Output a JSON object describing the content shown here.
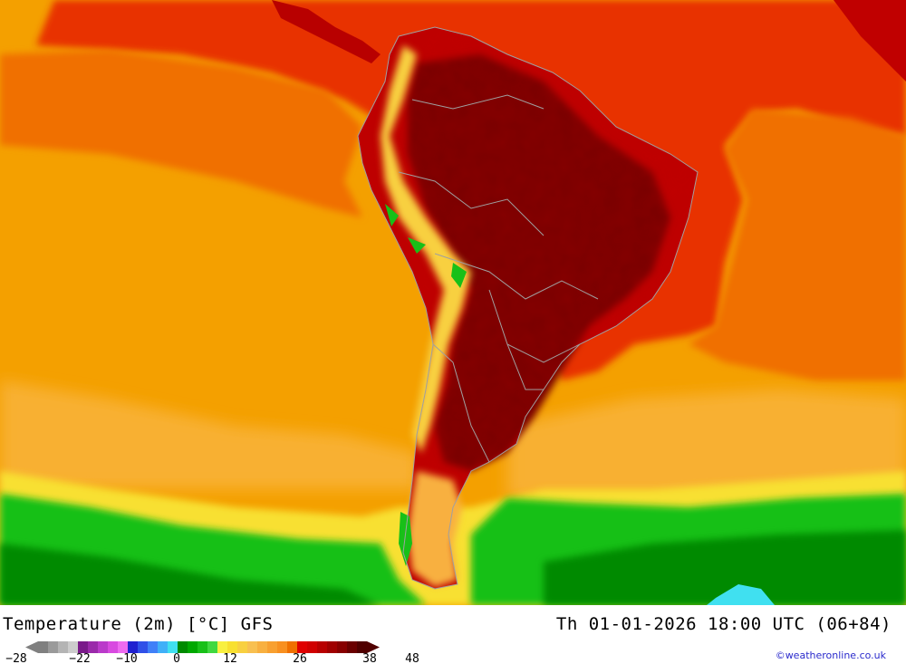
{
  "map": {
    "region": "South America",
    "palette": {
      "ocean_warm": "#f4a000",
      "ocean_hot": "#f06000",
      "land_hot": "#c00000",
      "land_very_hot": "#7a0000",
      "andes_cool": "#f8d040",
      "south_cool": "#18c018",
      "south_cold": "#009000",
      "border": "#a0a0a0"
    }
  },
  "footer": {
    "title_left": "Temperature (2m) [°C] GFS",
    "title_right": "Th 01-01-2026 18:00 UTC (06+84)",
    "credit": "©weatheronline.co.uk"
  },
  "legend": {
    "ticks": [
      "−28",
      "−22",
      "−10",
      "0",
      "12",
      "26",
      "38",
      "48"
    ],
    "colors": [
      "#808080",
      "#9a9a9a",
      "#b4b4b4",
      "#cccccc",
      "#7a1a8a",
      "#9a2aaa",
      "#ba3aca",
      "#d84ae0",
      "#ee6af0",
      "#2020d0",
      "#3050e8",
      "#4080f8",
      "#40b0f8",
      "#40e0f0",
      "#008a00",
      "#00a800",
      "#18c018",
      "#40d840",
      "#f8f040",
      "#f8e030",
      "#f8d040",
      "#f8c050",
      "#f8b040",
      "#f8a030",
      "#f89020",
      "#f07000",
      "#e00000",
      "#d00000",
      "#b80000",
      "#a00000",
      "#880000",
      "#6a0000",
      "#500000"
    ]
  }
}
